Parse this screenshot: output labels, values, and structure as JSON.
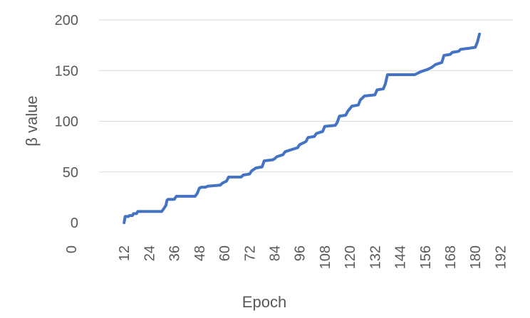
{
  "chart_data": {
    "type": "line",
    "title": "",
    "xlabel": "Epoch",
    "ylabel": "β value",
    "xlim": [
      0,
      198
    ],
    "ylim": [
      0,
      200
    ],
    "x_ticks": [
      "0",
      "12",
      "24",
      "36",
      "48",
      "60",
      "72",
      "84",
      "96",
      "108",
      "120",
      "132",
      "144",
      "156",
      "168",
      "180",
      "192"
    ],
    "x_tick_values": [
      0,
      12,
      24,
      36,
      48,
      60,
      72,
      84,
      96,
      108,
      120,
      132,
      144,
      156,
      168,
      180,
      192
    ],
    "y_ticks": [
      "0",
      "50",
      "100",
      "150",
      "200"
    ],
    "y_tick_values": [
      0,
      50,
      100,
      150,
      200
    ],
    "grid": "horizontal",
    "legend": "none",
    "color": "#4472C4",
    "series": [
      {
        "values": [
          [
            12,
            0
          ],
          [
            12.5,
            6
          ],
          [
            14,
            6
          ],
          [
            14.5,
            7
          ],
          [
            16,
            7
          ],
          [
            16.5,
            9
          ],
          [
            18,
            9
          ],
          [
            18.5,
            11
          ],
          [
            30,
            11
          ],
          [
            31,
            14
          ],
          [
            32,
            17
          ],
          [
            32.5,
            22
          ],
          [
            33,
            23
          ],
          [
            36,
            23
          ],
          [
            37,
            26
          ],
          [
            46,
            26
          ],
          [
            47,
            29
          ],
          [
            48,
            34
          ],
          [
            49,
            35
          ],
          [
            51,
            35
          ],
          [
            52,
            36
          ],
          [
            58,
            37
          ],
          [
            59,
            39
          ],
          [
            61,
            41
          ],
          [
            62,
            45
          ],
          [
            68,
            45
          ],
          [
            69,
            47
          ],
          [
            72,
            48
          ],
          [
            73,
            51
          ],
          [
            75,
            54
          ],
          [
            78,
            55
          ],
          [
            79,
            61
          ],
          [
            83,
            62
          ],
          [
            84,
            63
          ],
          [
            85,
            65
          ],
          [
            88,
            67
          ],
          [
            89,
            70
          ],
          [
            92,
            72
          ],
          [
            95,
            74
          ],
          [
            96,
            77
          ],
          [
            99,
            80
          ],
          [
            100,
            84
          ],
          [
            103,
            85
          ],
          [
            104,
            88
          ],
          [
            107,
            90
          ],
          [
            108,
            95
          ],
          [
            113,
            96
          ],
          [
            114,
            99
          ],
          [
            115,
            105
          ],
          [
            118,
            106
          ],
          [
            119,
            110
          ],
          [
            121,
            115
          ],
          [
            124,
            116
          ],
          [
            125,
            121
          ],
          [
            127,
            125
          ],
          [
            132,
            126
          ],
          [
            133,
            131
          ],
          [
            136,
            132
          ],
          [
            137,
            137
          ],
          [
            138,
            146
          ],
          [
            151,
            146
          ],
          [
            154,
            149
          ],
          [
            157,
            151
          ],
          [
            159,
            153
          ],
          [
            161,
            156
          ],
          [
            164,
            158
          ],
          [
            165,
            165
          ],
          [
            168,
            166
          ],
          [
            169,
            168
          ],
          [
            172,
            169
          ],
          [
            173,
            171
          ],
          [
            177,
            172
          ],
          [
            180,
            173
          ],
          [
            181,
            178
          ],
          [
            182,
            186
          ]
        ]
      }
    ]
  }
}
